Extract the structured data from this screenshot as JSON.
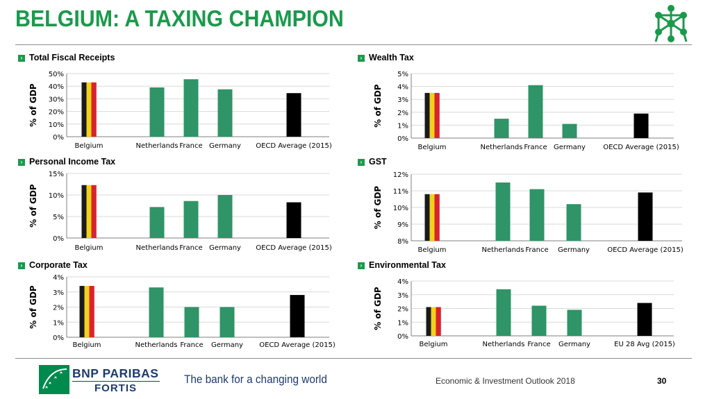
{
  "title": "BELGIUM: A TAXING CHAMPION",
  "footer": {
    "brand_line1": "BNP PARIBAS",
    "brand_line2": "FORTIS",
    "slogan": "The bank for a changing world",
    "report": "Economic & Investment Outlook 2018",
    "page": "30"
  },
  "colors": {
    "title_green": "#1a9a4c",
    "bar_green": "#2f9467",
    "oecd_black": "#000000",
    "belgium_flag": [
      "#1a1a1a",
      "#f2d21c",
      "#d9232e"
    ],
    "brand_blue": "#1e3a6e"
  },
  "icons": [
    "atomium-icon",
    "bnp-stars-logo-icon"
  ],
  "chart_data": [
    {
      "type": "bar",
      "title": "Total Fiscal Receipts",
      "ylabel": "% of GDP",
      "categories": [
        "Belgium",
        "Netherlands",
        "France",
        "Germany",
        "OECD Average (2015)"
      ],
      "values": [
        43,
        39,
        45.5,
        37.5,
        34.5
      ],
      "yticks": [
        "0%",
        "10%",
        "20%",
        "30%",
        "40%",
        "50%"
      ],
      "ylim": [
        0,
        50
      ],
      "grid": true
    },
    {
      "type": "bar",
      "title": "Wealth Tax",
      "ylabel": "% of GDP",
      "categories": [
        "Belgium",
        "Netherlands",
        "France",
        "Germany",
        "OECD Average (2015)"
      ],
      "values": [
        3.5,
        1.5,
        4.1,
        1.1,
        1.9
      ],
      "yticks": [
        "0%",
        "1%",
        "2%",
        "3%",
        "4%",
        "5%"
      ],
      "ylim": [
        0,
        5
      ],
      "grid": true
    },
    {
      "type": "bar",
      "title": "Personal Income Tax",
      "ylabel": "% of GDP",
      "categories": [
        "Belgium",
        "Netherlands",
        "France",
        "Germany",
        "OECD Average (2015)"
      ],
      "values": [
        12.3,
        7.2,
        8.6,
        10,
        8.3
      ],
      "yticks": [
        "0%",
        "5%",
        "10%",
        "15%"
      ],
      "ylim": [
        0,
        15
      ],
      "grid": true
    },
    {
      "type": "bar",
      "title": "GST",
      "ylabel": "% of GDP",
      "categories": [
        "Belgium",
        "Netherlands",
        "France",
        "Germany",
        "OECD Average (2015)"
      ],
      "values": [
        10.8,
        11.5,
        11.1,
        10.2,
        10.9
      ],
      "yticks": [
        "8%",
        "9%",
        "10%",
        "11%",
        "12%"
      ],
      "ylim": [
        8,
        12
      ],
      "grid": true
    },
    {
      "type": "bar",
      "title": "Corporate Tax",
      "ylabel": "% of GDP",
      "categories": [
        "Belgium",
        "Netherlands",
        "France",
        "Germany",
        "OECD Average (2015)"
      ],
      "values": [
        3.4,
        3.3,
        2,
        2,
        2.8
      ],
      "yticks": [
        "0%",
        "1%",
        "2%",
        "3%",
        "4%"
      ],
      "ylim": [
        0,
        4
      ],
      "grid": true
    },
    {
      "type": "bar",
      "title": "Environmental Tax",
      "ylabel": "% of GDP",
      "categories": [
        "Belgium",
        "Netherlands",
        "France",
        "Germany",
        "EU 28 Avg (2015)"
      ],
      "values": [
        2.1,
        3.4,
        2.2,
        1.9,
        2.4
      ],
      "yticks": [
        "0%",
        "1%",
        "2%",
        "3%",
        "4%"
      ],
      "ylim": [
        0,
        4
      ],
      "grid": true
    }
  ]
}
